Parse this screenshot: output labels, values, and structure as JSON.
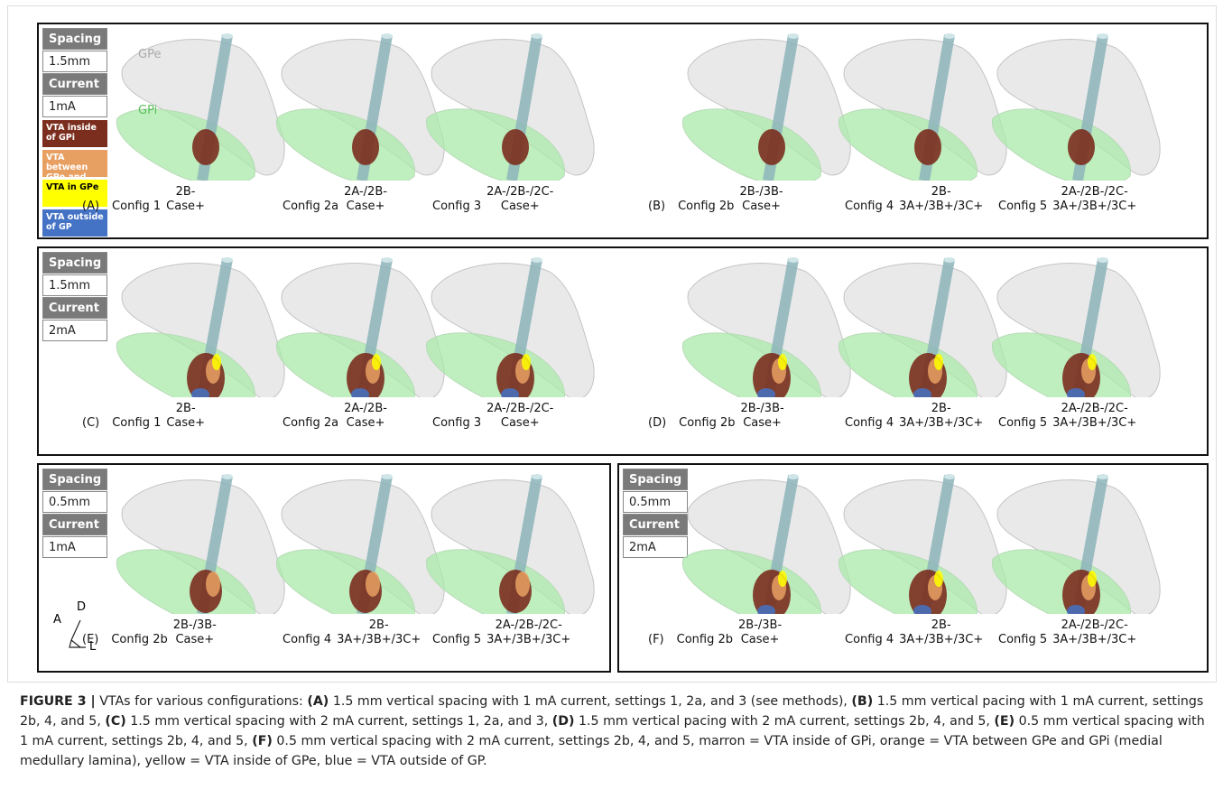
{
  "boxes": [
    {
      "settings": {
        "spacing_label": "Spacing",
        "spacing": "1.5mm",
        "current_label": "Current",
        "current": "1mA"
      },
      "legend": [
        {
          "text": "VTA inside of GPi",
          "color": "#7b2e1e"
        },
        {
          "text": "VTA between GPe and GPi",
          "color": "#e8a062"
        },
        {
          "text": "VTA in GPe",
          "color": "#ffff00"
        },
        {
          "text": "VTA outside of GP",
          "color": "#4472c4"
        }
      ],
      "regions": [
        "GPe",
        "GPi"
      ],
      "panels": [
        {
          "label": "(A)",
          "configs": [
            {
              "name": "Config 1",
              "code": [
                "2B-",
                "Case+"
              ]
            },
            {
              "name": "Config 2a",
              "code": [
                "2A-/2B-",
                "Case+"
              ]
            },
            {
              "name": "Config 3",
              "code": [
                "2A-/2B-/2C-",
                "Case+"
              ]
            }
          ]
        },
        {
          "label": "(B)",
          "configs": [
            {
              "name": "Config 2b",
              "code": [
                "2B-/3B-",
                "Case+"
              ]
            },
            {
              "name": "Config 4",
              "code": [
                "2B-",
                "3A+/3B+/3C+"
              ]
            },
            {
              "name": "Config 5",
              "code": [
                "2A-/2B-/2C-",
                "3A+/3B+/3C+"
              ]
            }
          ]
        }
      ]
    },
    {
      "settings": {
        "spacing_label": "Spacing",
        "spacing": "1.5mm",
        "current_label": "Current",
        "current": "2mA"
      },
      "panels": [
        {
          "label": "(C)",
          "configs": [
            {
              "name": "Config 1",
              "code": [
                "2B-",
                "Case+"
              ]
            },
            {
              "name": "Config 2a",
              "code": [
                "2A-/2B-",
                "Case+"
              ]
            },
            {
              "name": "Config 3",
              "code": [
                "2A-/2B-/2C-",
                "Case+"
              ]
            }
          ]
        },
        {
          "label": "(D)",
          "configs": [
            {
              "name": "Config 2b",
              "code": [
                "2B-/3B-",
                "Case+"
              ]
            },
            {
              "name": "Config 4",
              "code": [
                "2B-",
                "3A+/3B+/3C+"
              ]
            },
            {
              "name": "Config 5",
              "code": [
                "2A-/2B-/2C-",
                "3A+/3B+/3C+"
              ]
            }
          ]
        }
      ]
    },
    {
      "settings": {
        "spacing_label": "Spacing",
        "spacing": "0.5mm",
        "current_label": "Current",
        "current": "1mA"
      },
      "orientation": [
        "A",
        "D",
        "L"
      ],
      "panels": [
        {
          "label": "(E)",
          "configs": [
            {
              "name": "Config 2b",
              "code": [
                "2B-/3B-",
                "Case+"
              ]
            },
            {
              "name": "Config 4",
              "code": [
                "2B-",
                "3A+/3B+/3C+"
              ]
            },
            {
              "name": "Config 5",
              "code": [
                "2A-/2B-/2C-",
                "3A+/3B+/3C+"
              ]
            }
          ]
        }
      ]
    },
    {
      "settings": {
        "spacing_label": "Spacing",
        "spacing": "0.5mm",
        "current_label": "Current",
        "current": "2mA"
      },
      "panels": [
        {
          "label": "(F)",
          "configs": [
            {
              "name": "Config 2b",
              "code": [
                "2B-/3B-",
                "Case+"
              ]
            },
            {
              "name": "Config 4",
              "code": [
                "2B-",
                "3A+/3B+/3C+"
              ]
            },
            {
              "name": "Config 5",
              "code": [
                "2A-/2B-/2C-",
                "3A+/3B+/3C+"
              ]
            }
          ]
        }
      ]
    }
  ],
  "caption": {
    "label": "FIGURE 3 |",
    "intro": "VTAs for various configurations:",
    "items": [
      {
        "label": "(A)",
        "text": "1.5 mm vertical spacing with 1 mA current, settings 1, 2a, and 3 (see methods),"
      },
      {
        "label": "(B)",
        "text": "1.5 mm vertical pacing with 1 mA current, settings 2b, 4, and 5,"
      },
      {
        "label": "(C)",
        "text": "1.5 mm vertical spacing with 2 mA current, settings 1, 2a, and 3,"
      },
      {
        "label": "(D)",
        "text": "1.5 mm vertical pacing with 2 mA current, settings 2b, 4, and 5,"
      },
      {
        "label": "(E)",
        "text": "0.5 mm vertical spacing with 1 mA current, settings 2b, 4, and 5,"
      },
      {
        "label": "(F)",
        "text": "0.5 mm vertical spacing with 2 mA current, settings 2b, 4, and 5, marron = VTA inside of GPi, orange = VTA between GPe and GPi (medial medullary lamina), yellow = VTA inside of GPe, blue = VTA outside of GP."
      }
    ]
  }
}
